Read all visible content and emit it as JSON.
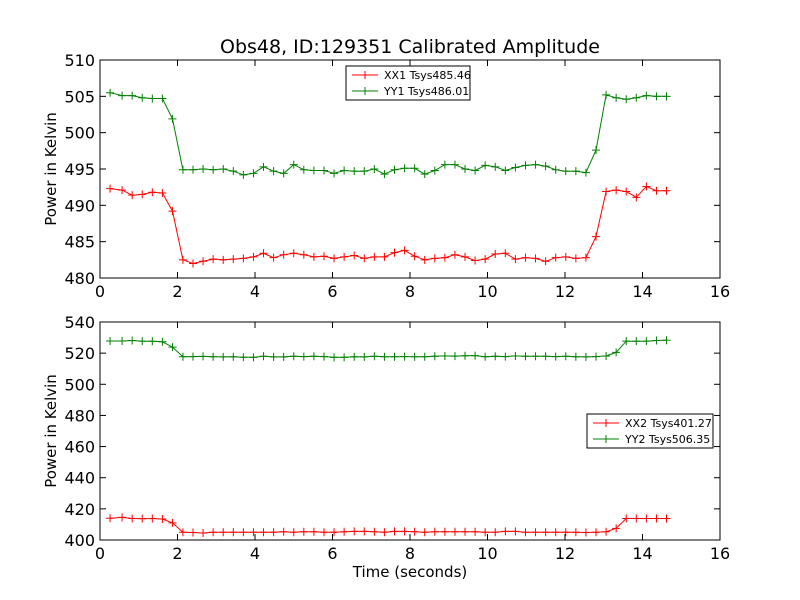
{
  "title": "Obs48, ID:129351 Calibrated Amplitude",
  "colors": {
    "xx": "#ff0000",
    "yy": "#008000",
    "frame": "#000000"
  },
  "chart_data": [
    {
      "type": "line",
      "ylabel": "Power in Kelvin",
      "xlabel": "",
      "xlim": [
        0,
        16
      ],
      "ylim": [
        480,
        510
      ],
      "xticks": [
        "0",
        "2",
        "4",
        "6",
        "8",
        "10",
        "12",
        "14",
        "16"
      ],
      "yticks": [
        "480",
        "485",
        "490",
        "495",
        "500",
        "505",
        "510"
      ],
      "legend_position": "upper center",
      "x": [
        0.26,
        0.57,
        0.83,
        1.09,
        1.35,
        1.61,
        1.87,
        2.14,
        2.4,
        2.66,
        2.92,
        3.18,
        3.44,
        3.7,
        3.96,
        4.22,
        4.48,
        4.74,
        5.0,
        5.26,
        5.52,
        5.78,
        6.04,
        6.3,
        6.56,
        6.82,
        7.08,
        7.34,
        7.6,
        7.86,
        8.12,
        8.38,
        8.64,
        8.9,
        9.16,
        9.42,
        9.68,
        9.94,
        10.2,
        10.46,
        10.72,
        10.98,
        11.24,
        11.5,
        11.76,
        12.02,
        12.28,
        12.54,
        12.8,
        13.06,
        13.32,
        13.58,
        13.84,
        14.1,
        14.36,
        14.62
      ],
      "series": [
        {
          "name": "XX1 Tsys485.46",
          "color": "#ff0000",
          "values": [
            492.3,
            492.1,
            491.4,
            491.5,
            491.8,
            491.7,
            489.2,
            482.5,
            482.0,
            482.3,
            482.6,
            482.5,
            482.6,
            482.7,
            482.9,
            483.4,
            482.8,
            483.2,
            483.4,
            483.2,
            482.9,
            483.0,
            482.7,
            482.9,
            483.1,
            482.7,
            482.9,
            482.9,
            483.5,
            483.8,
            483.0,
            482.5,
            482.7,
            482.8,
            483.2,
            482.9,
            482.4,
            482.6,
            483.3,
            483.4,
            482.6,
            482.8,
            482.7,
            482.3,
            482.8,
            482.9,
            482.7,
            482.8,
            485.7,
            491.9,
            492.1,
            491.9,
            491.1,
            492.6,
            492.0,
            492.0
          ]
        },
        {
          "name": "YY1 Tsys486.01",
          "color": "#008000",
          "values": [
            505.5,
            505.1,
            505.1,
            504.8,
            504.7,
            504.7,
            501.9,
            494.9,
            494.9,
            495.0,
            494.9,
            495.0,
            494.7,
            494.2,
            494.4,
            495.3,
            494.7,
            494.4,
            495.6,
            494.9,
            494.8,
            494.8,
            494.4,
            494.8,
            494.7,
            494.7,
            495.0,
            494.3,
            494.9,
            495.1,
            495.1,
            494.3,
            494.8,
            495.6,
            495.6,
            495.0,
            494.8,
            495.5,
            495.3,
            494.8,
            495.2,
            495.5,
            495.6,
            495.4,
            494.9,
            494.7,
            494.7,
            494.5,
            497.6,
            505.2,
            504.8,
            504.6,
            504.8,
            505.1,
            505.0,
            505.0
          ]
        }
      ]
    },
    {
      "type": "line",
      "ylabel": "Power in Kelvin",
      "xlabel": "Time (seconds)",
      "xlim": [
        0,
        16
      ],
      "ylim": [
        400,
        540
      ],
      "xticks": [
        "0",
        "2",
        "4",
        "6",
        "8",
        "10",
        "12",
        "14",
        "16"
      ],
      "yticks": [
        "400",
        "420",
        "440",
        "460",
        "480",
        "500",
        "520",
        "540"
      ],
      "legend_position": "center right",
      "x": [
        0.26,
        0.57,
        0.83,
        1.09,
        1.35,
        1.61,
        1.87,
        2.14,
        2.4,
        2.66,
        2.92,
        3.18,
        3.44,
        3.7,
        3.96,
        4.22,
        4.48,
        4.74,
        5.0,
        5.26,
        5.52,
        5.78,
        6.04,
        6.3,
        6.56,
        6.82,
        7.08,
        7.34,
        7.6,
        7.86,
        8.12,
        8.38,
        8.64,
        8.9,
        9.16,
        9.42,
        9.68,
        9.94,
        10.2,
        10.46,
        10.72,
        10.98,
        11.24,
        11.5,
        11.76,
        12.02,
        12.28,
        12.54,
        12.8,
        13.06,
        13.32,
        13.58,
        13.84,
        14.1,
        14.36,
        14.62
      ],
      "series": [
        {
          "name": "XX2 Tsys401.27",
          "color": "#ff0000",
          "values": [
            414,
            414.5,
            413.8,
            413.7,
            413.8,
            413.5,
            411,
            405,
            404.8,
            404.5,
            405,
            405,
            405,
            405,
            405,
            405,
            405,
            405.3,
            405,
            405.3,
            405.3,
            405,
            405,
            405.3,
            405.5,
            405.5,
            405.3,
            405,
            405.5,
            405.5,
            405.3,
            405,
            405.3,
            405.3,
            405.3,
            405.3,
            405.3,
            405,
            405,
            405.5,
            405.5,
            405,
            405,
            405,
            405,
            405,
            405,
            404.8,
            405,
            405.3,
            407.5,
            413.8,
            413.8,
            413.8,
            413.8,
            413.8
          ]
        },
        {
          "name": "YY2 Tsys506.35",
          "color": "#008000",
          "values": [
            527.8,
            527.8,
            528.1,
            527.7,
            527.6,
            527.3,
            523.9,
            517.7,
            517.8,
            517.9,
            517.7,
            517.6,
            517.7,
            517.4,
            517.3,
            518,
            517.6,
            517.6,
            518,
            517.8,
            518,
            517.8,
            517.3,
            517.3,
            517.7,
            517.6,
            518,
            517.7,
            517.7,
            517.8,
            517.7,
            517.7,
            518,
            518.2,
            518.1,
            518.3,
            518.4,
            517.7,
            518,
            517.8,
            518.2,
            518,
            518,
            518,
            517.8,
            518,
            517.7,
            517.6,
            517.8,
            518.2,
            520.5,
            527.7,
            527.7,
            527.7,
            528.1,
            528.3
          ]
        }
      ]
    }
  ]
}
